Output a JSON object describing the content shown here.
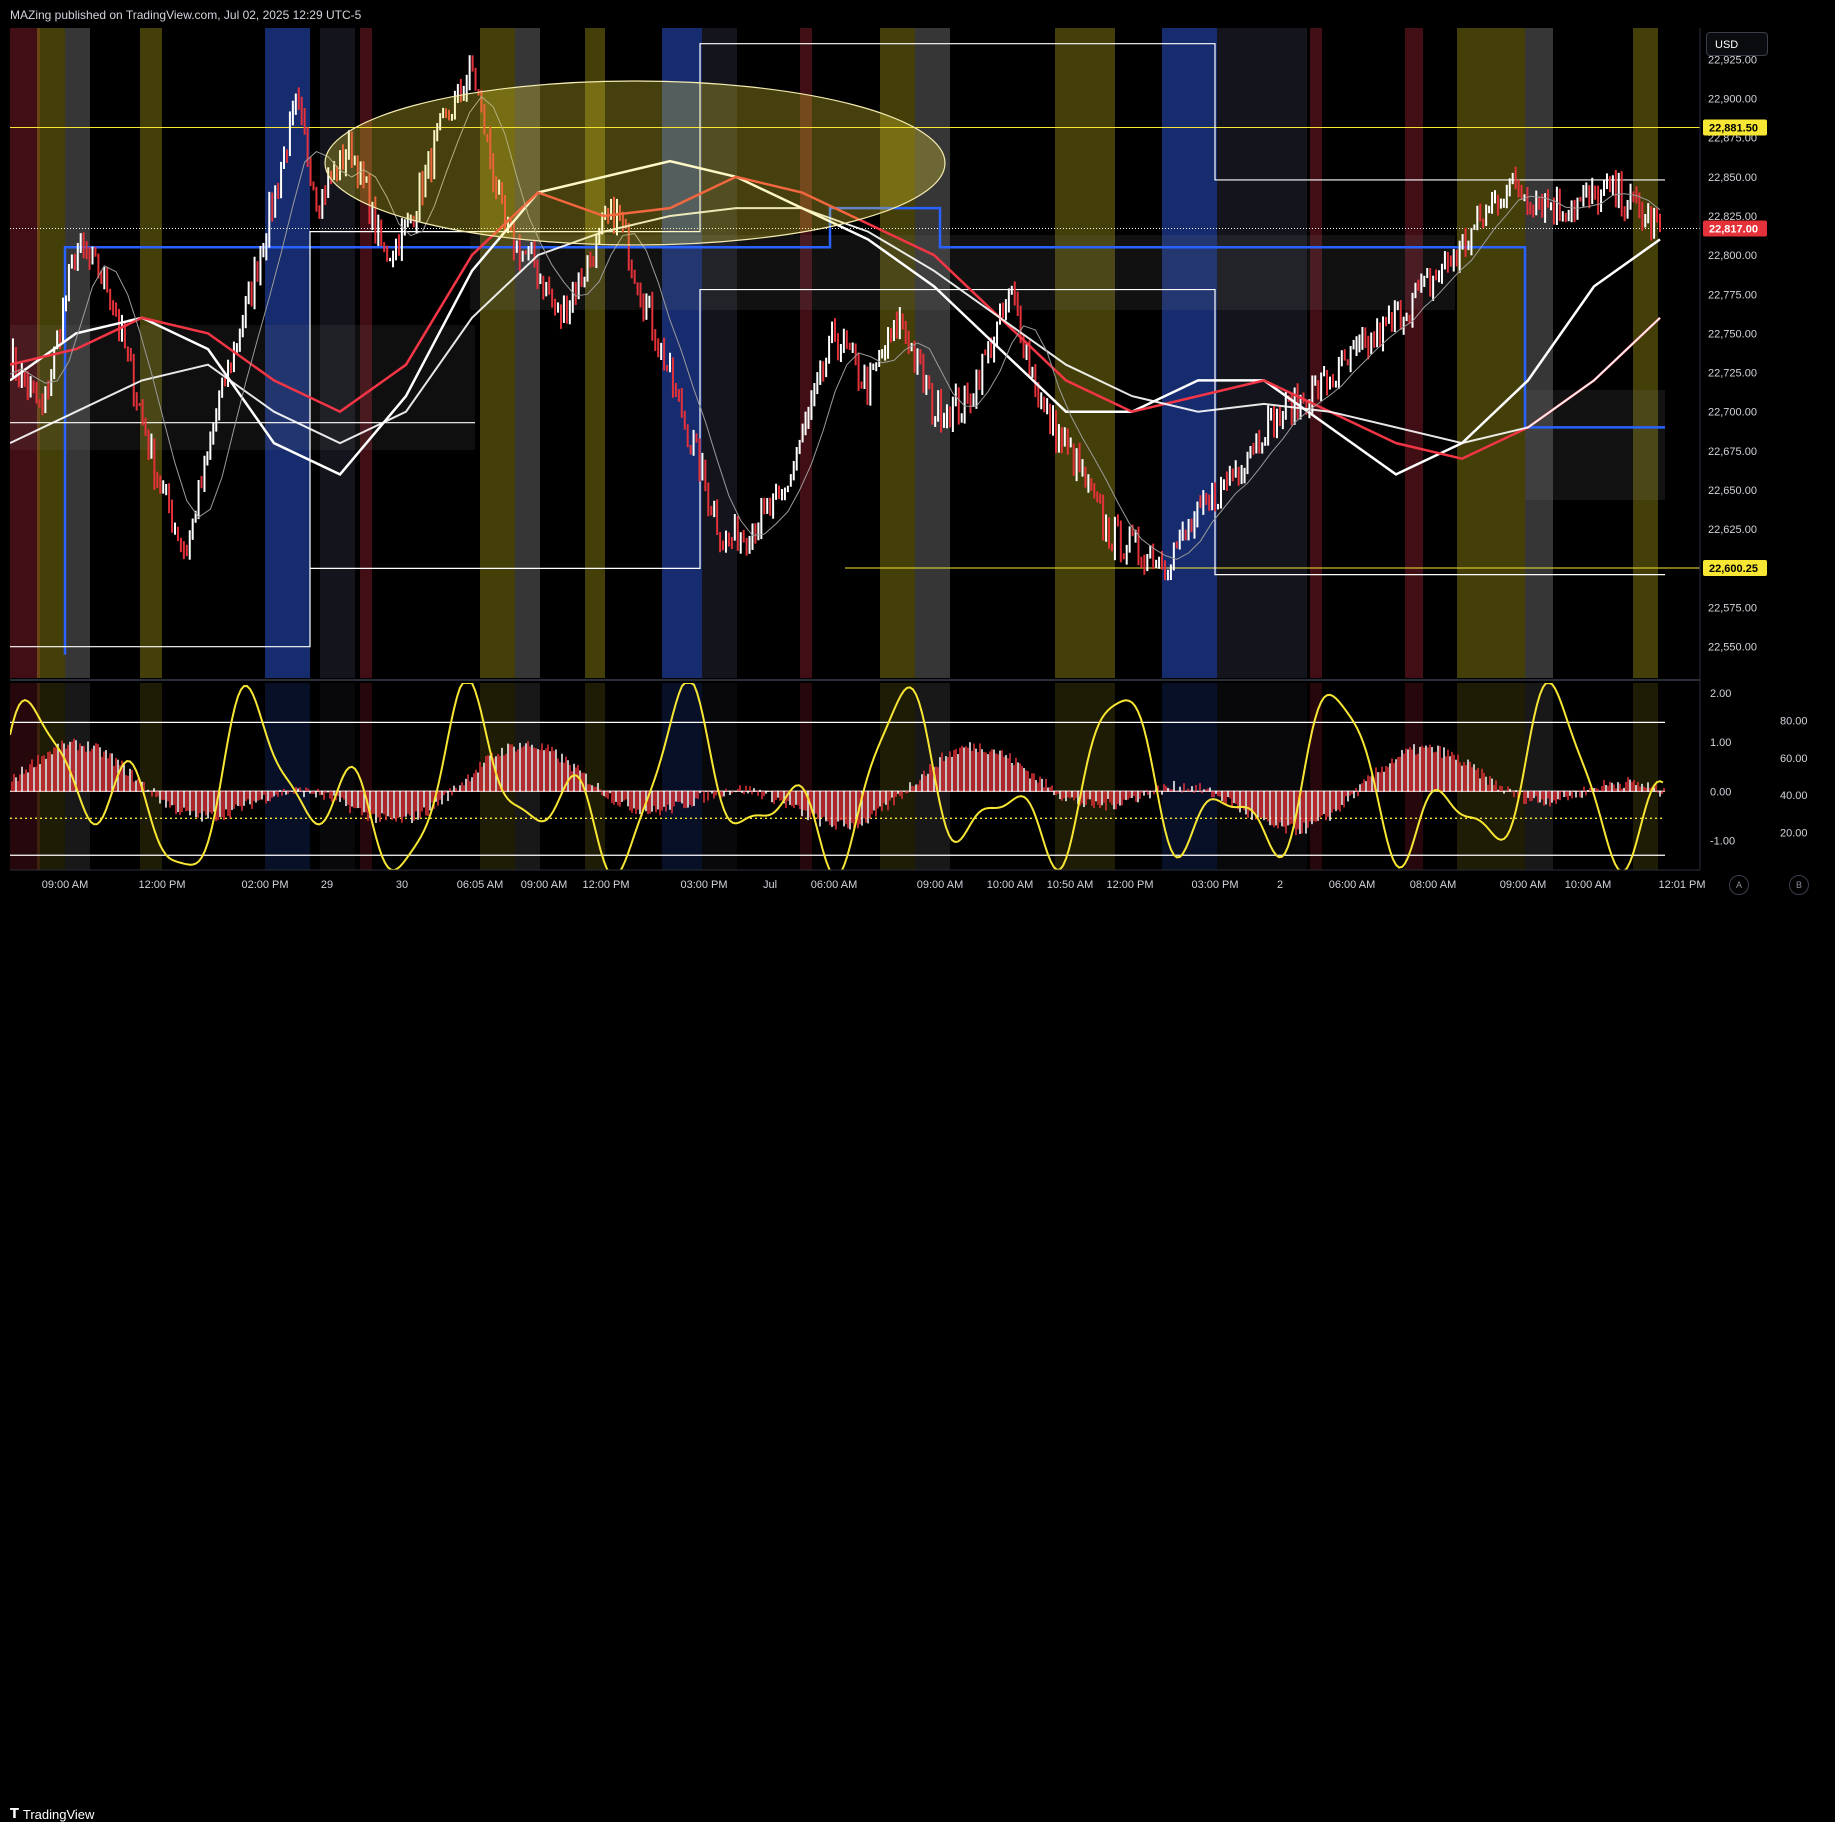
{
  "header": {
    "title": "MAZing published on TradingView.com, Jul 02, 2025 12:29 UTC-5"
  },
  "footer": {
    "brand": "TradingView",
    "logo_icon": "tradingview-logo-icon"
  },
  "price_scale": {
    "currency": "USD",
    "ticks": [
      "22,925.00",
      "22,900.00",
      "22,875.00",
      "22,850.00",
      "22,825.00",
      "22,800.00",
      "22,775.00",
      "22,750.00",
      "22,725.00",
      "22,700.00",
      "22,675.00",
      "22,650.00",
      "22,625.00",
      "22,600.00",
      "22,575.00",
      "22,550.00"
    ],
    "badges": [
      {
        "label": "22,881.50",
        "value": 22881.5,
        "bg": "#f7e633",
        "fg": "#000000"
      },
      {
        "label": "22,817.00",
        "value": 22817,
        "bg": "#e5323a",
        "fg": "#ffffff"
      },
      {
        "label": "22,600.25",
        "value": 22600.25,
        "bg": "#f7e633",
        "fg": "#000000"
      }
    ]
  },
  "osc_scale": {
    "left_ticks": [
      "2.00",
      "1.00",
      "0.00",
      "-1.00"
    ],
    "right_ticks": [
      "80.00",
      "60.00",
      "40.00",
      "20.00"
    ]
  },
  "scale_buttons": [
    "A",
    "B"
  ],
  "time_axis": {
    "labels": [
      "09:00 AM",
      "12:00 PM",
      "02:00 PM",
      "29",
      "30",
      "06:05 AM",
      "09:00 AM",
      "12:00 PM",
      "03:00 PM",
      "Jul",
      "06:00 AM",
      "09:00 AM",
      "10:00 AM",
      "10:50 AM",
      "12:00 PM",
      "03:00 PM",
      "2",
      "06:00 AM",
      "08:00 AM",
      "09:00 AM",
      "10:00 AM",
      "12:01 PM"
    ]
  },
  "colors": {
    "background": "#000000",
    "up_candle": "#ffffff",
    "down_candle": "#e5323a",
    "ema_fast": "#ffffff",
    "ema_slow": "#f23645",
    "level_line": "#2962ff",
    "highlight_yellow": "#f7e633",
    "oscillator": "#f7e633"
  },
  "chart_data": [
    {
      "type": "line",
      "title": "",
      "ylim": [
        22530,
        22945
      ],
      "price_series": [
        {
          "name": "",
          "x": [
            0,
            6,
            12,
            18,
            22,
            27,
            32,
            38,
            44,
            52,
            56,
            62,
            68,
            72,
            78,
            84,
            90,
            96,
            100
          ],
          "y": [
            22735,
            22700,
            22805,
            22780,
            22725,
            22655,
            22610,
            22705,
            22780,
            22895,
            22835,
            22870,
            22800,
            22815,
            22875,
            22920,
            22815,
            22790,
            22760
          ]
        },
        {
          "name": "",
          "x": [
            100,
            110,
            122,
            130,
            140,
            150,
            156,
            162,
            168,
            174,
            182,
            188,
            194,
            200,
            210,
            218,
            228,
            240,
            252,
            263,
            272,
            282,
            292,
            300
          ],
          "y": [
            22760,
            22830,
            22700,
            22615,
            22640,
            22750,
            22715,
            22760,
            22700,
            22705,
            22775,
            22700,
            22665,
            22620,
            22605,
            22640,
            22690,
            22720,
            22760,
            22800,
            22845,
            22830,
            22840,
            22817
          ]
        }
      ],
      "moving_averages": [
        {
          "name": "",
          "color": "#ffffff",
          "y": [
            22720,
            22750,
            22760,
            22740,
            22680,
            22660,
            22710,
            22790,
            22840,
            22850,
            22860,
            22850,
            22830,
            22810,
            22780,
            22740,
            22700,
            22700,
            22720,
            22720,
            22690,
            22660,
            22680,
            22720,
            22780,
            22810
          ]
        },
        {
          "name": "",
          "color": "#f23645",
          "y": [
            22730,
            22740,
            22760,
            22750,
            22720,
            22700,
            22730,
            22800,
            22840,
            22825,
            22830,
            22850,
            22840,
            22820,
            22800,
            22760,
            22720,
            22700,
            22710,
            22720,
            22700,
            22680,
            22670,
            22690,
            22720,
            22760
          ]
        },
        {
          "name": "",
          "color": "#ffffff",
          "y": [
            22680,
            22700,
            22720,
            22730,
            22700,
            22680,
            22700,
            22760,
            22800,
            22815,
            22825,
            22830,
            22830,
            22815,
            22790,
            22760,
            22730,
            22710,
            22700,
            22705,
            22700,
            22690,
            22680,
            22690,
            22720,
            22760
          ]
        }
      ],
      "horizontal_levels": [
        {
          "name": "",
          "value": 22881.5,
          "color": "#f7e633"
        },
        {
          "name": "",
          "value": 22817,
          "color": "#ffffff",
          "style": "dotted"
        },
        {
          "name": "",
          "value": 22600.25,
          "color": "#f7e633"
        }
      ],
      "step_levels": [
        {
          "name": "",
          "color": "#2962ff",
          "steps": [
            [
              22545,
              22727
            ],
            [
              22727,
              22805
            ],
            [
              22805,
              22805
            ],
            [
              22805,
              22830
            ],
            [
              22830,
              22805
            ],
            [
              22805,
              22690
            ]
          ]
        },
        {
          "name": "",
          "color": "#ffffff",
          "steps": [
            [
              22550,
              22815
            ],
            [
              22815,
              22935
            ],
            [
              22935,
              22848
            ],
            [
              22848,
              22596
            ]
          ]
        }
      ],
      "annotation": {
        "shape": "ellipse",
        "color": "#f7e633"
      }
    },
    {
      "type": "area",
      "title": "",
      "ylim": [
        -1.6,
        2.2
      ],
      "series": [
        {
          "name": "",
          "color": "#f7e633",
          "kind": "line"
        },
        {
          "name": "",
          "color": "#e5323a",
          "kind": "histogram"
        }
      ],
      "reference_lines": [
        1.4,
        0.0,
        -1.3
      ],
      "dotted_line": -0.55
    }
  ]
}
